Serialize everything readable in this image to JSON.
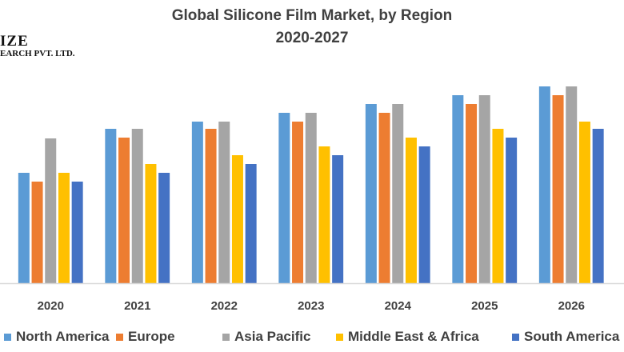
{
  "chart_data": {
    "type": "bar",
    "title": "Global Silicone Film Market, by Region",
    "subtitle": "2020-2027",
    "xlabel": "",
    "ylabel": "",
    "categories": [
      "2020",
      "2021",
      "2022",
      "2023",
      "2024",
      "2025",
      "2026"
    ],
    "ylim": [
      0,
      25.4
    ],
    "grid": false,
    "legend_placement": "bottom",
    "series": [
      {
        "name": "North America",
        "color": "#5B9BD5",
        "values": [
          13.8,
          19.3,
          20.2,
          21.3,
          22.4,
          23.5,
          24.6
        ]
      },
      {
        "name": "Europe",
        "color": "#ED7D31",
        "values": [
          12.7,
          18.2,
          19.3,
          20.2,
          21.3,
          22.4,
          23.5
        ]
      },
      {
        "name": "Asia Pacific",
        "color": "#A5A5A5",
        "values": [
          18.1,
          19.3,
          20.2,
          21.3,
          22.4,
          23.5,
          24.6
        ]
      },
      {
        "name": "Middle East & Africa",
        "color": "#FFC000",
        "values": [
          13.8,
          14.9,
          16.0,
          17.1,
          18.2,
          19.3,
          20.2
        ]
      },
      {
        "name": "South America",
        "color": "#4472C4",
        "values": [
          12.7,
          13.8,
          14.9,
          16.0,
          17.1,
          18.2,
          19.3
        ]
      }
    ]
  },
  "logo": {
    "line1": "IZE",
    "line2": "EARCH PVT. LTD."
  }
}
